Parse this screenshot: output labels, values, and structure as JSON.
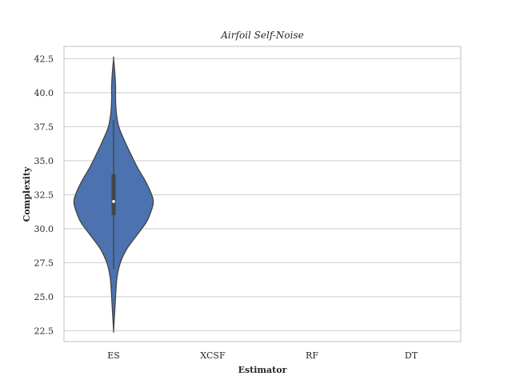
{
  "chart_data": {
    "type": "violin",
    "title": "Airfoil Self-Noise",
    "xlabel": "Estimator",
    "ylabel": "Complexity",
    "categories": [
      "ES",
      "XCSF",
      "RF",
      "DT"
    ],
    "ylim": [
      21.7,
      43.4
    ],
    "yticks": [
      22.5,
      25.0,
      27.5,
      30.0,
      32.5,
      35.0,
      37.5,
      40.0,
      42.5
    ],
    "ytick_labels": [
      "22.5",
      "25.0",
      "27.5",
      "30.0",
      "32.5",
      "35.0",
      "37.5",
      "40.0",
      "42.5"
    ],
    "grid": true,
    "violins": [
      {
        "category": "ES",
        "whisker_low": 27.0,
        "q1": 31.0,
        "median": 32.0,
        "q3": 34.0,
        "whisker_high": 38.0,
        "density": [
          [
            22.5,
            0.0
          ],
          [
            23.5,
            0.02
          ],
          [
            24.5,
            0.04
          ],
          [
            25.5,
            0.06
          ],
          [
            26.5,
            0.09
          ],
          [
            27.5,
            0.17
          ],
          [
            28.5,
            0.33
          ],
          [
            29.5,
            0.58
          ],
          [
            30.5,
            0.83
          ],
          [
            31.5,
            0.97
          ],
          [
            32.0,
            1.0
          ],
          [
            32.5,
            0.96
          ],
          [
            33.5,
            0.8
          ],
          [
            34.5,
            0.6
          ],
          [
            35.5,
            0.43
          ],
          [
            36.5,
            0.27
          ],
          [
            37.5,
            0.13
          ],
          [
            38.5,
            0.07
          ],
          [
            39.5,
            0.05
          ],
          [
            40.5,
            0.05
          ],
          [
            41.5,
            0.03
          ],
          [
            42.5,
            0.0
          ]
        ]
      }
    ],
    "colors": {
      "violin_fill": "#4c72b0",
      "violin_edge": "#444444",
      "grid": "#cccccc"
    }
  }
}
